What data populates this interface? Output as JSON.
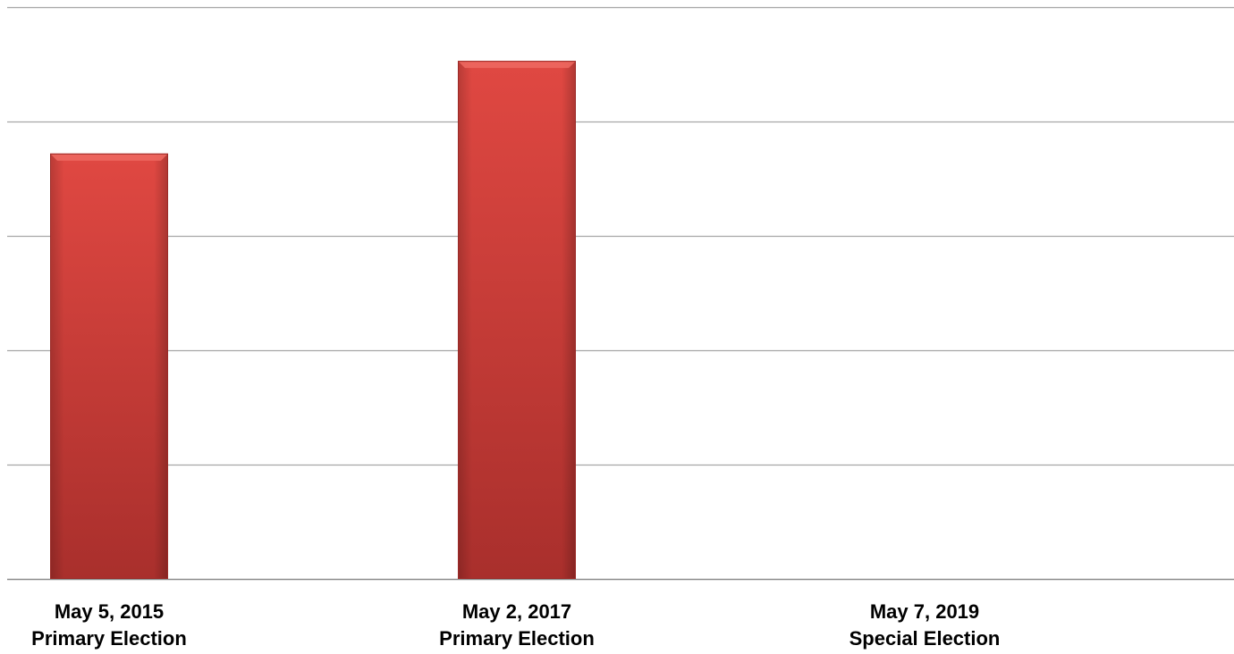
{
  "chart_data": {
    "type": "bar",
    "title": "",
    "xlabel": "",
    "ylabel": "",
    "categories": [
      {
        "date": "May 5, 2015",
        "election": "Primary Election"
      },
      {
        "date": "May 2, 2017",
        "election": "Primary Election"
      },
      {
        "date": "May 7, 2019",
        "election": "Special Election"
      }
    ],
    "values": [
      3.72,
      4.53,
      0
    ],
    "ylim": [
      0,
      5
    ],
    "gridlines": true,
    "legend": "none",
    "bar_color": "#d23a34"
  }
}
